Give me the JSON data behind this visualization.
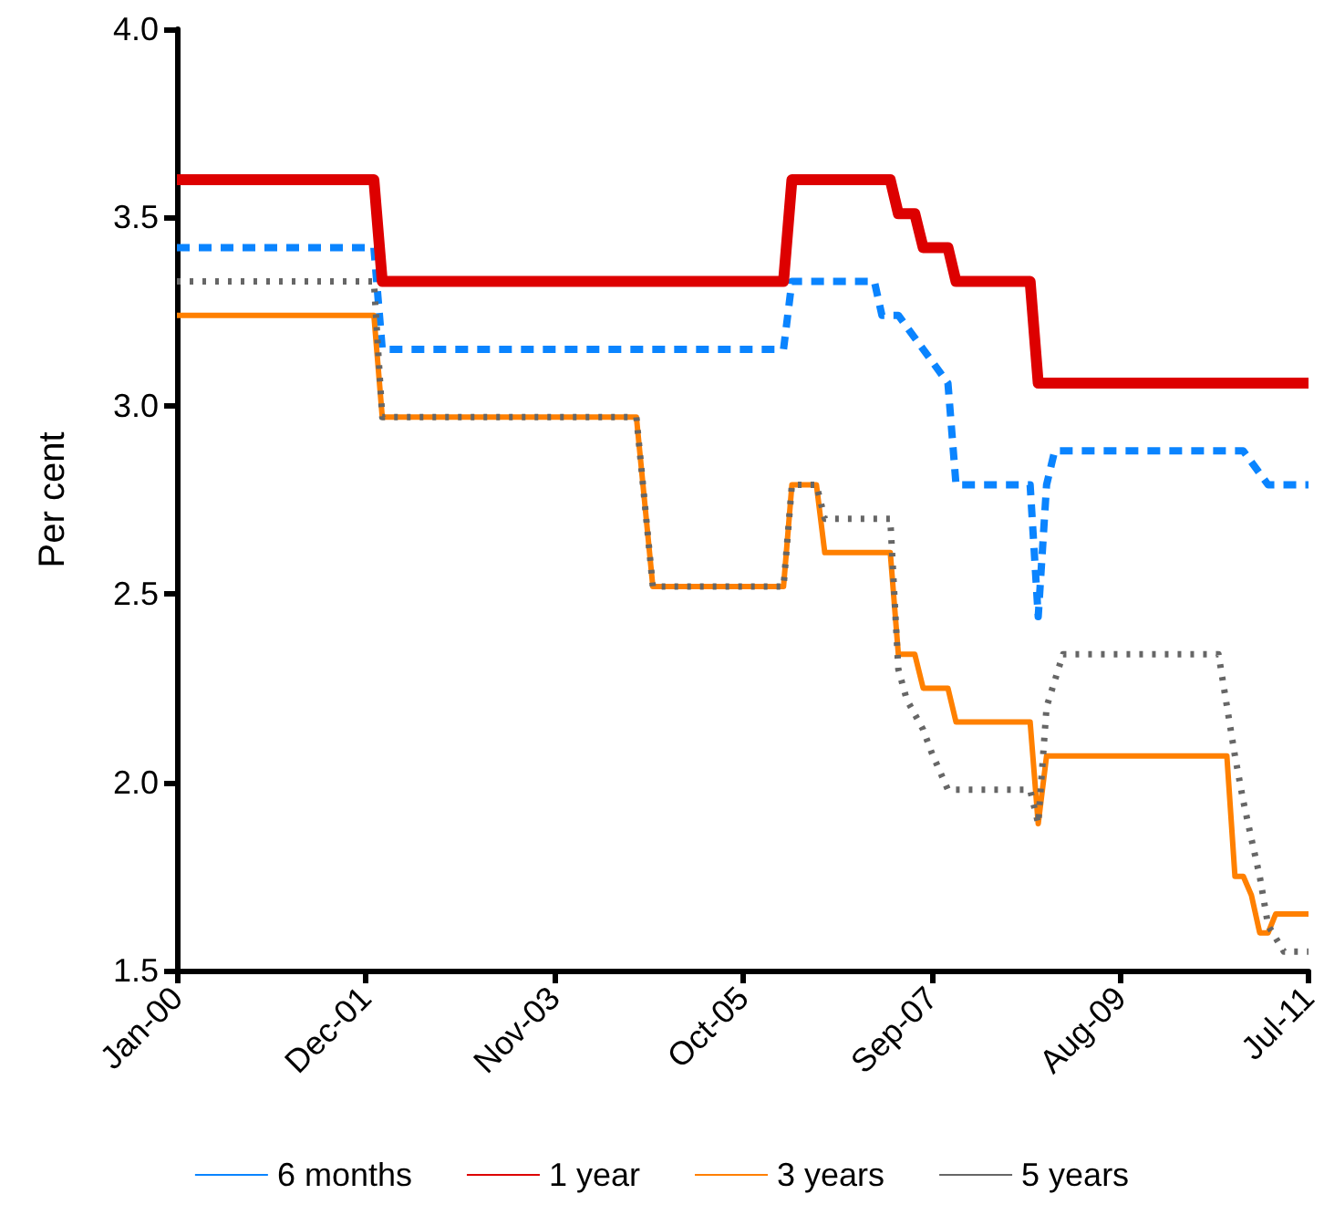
{
  "chart_data": {
    "type": "line",
    "ylabel": "Per cent",
    "xlim": [
      "2000-01",
      "2011-07"
    ],
    "xticks": [
      {
        "value": "2000-01",
        "label": "Jan-00"
      },
      {
        "value": "2001-12",
        "label": "Dec-01"
      },
      {
        "value": "2003-11",
        "label": "Nov-03"
      },
      {
        "value": "2005-10",
        "label": "Oct-05"
      },
      {
        "value": "2007-09",
        "label": "Sep-07"
      },
      {
        "value": "2009-08",
        "label": "Aug-09"
      },
      {
        "value": "2011-07",
        "label": "Jul-11"
      }
    ],
    "ylim": [
      1.5,
      4.0
    ],
    "yticks": [
      {
        "value": 1.5,
        "label": "1.5"
      },
      {
        "value": 2,
        "label": "2.0"
      },
      {
        "value": 2.5,
        "label": "2.5"
      },
      {
        "value": 3,
        "label": "3.0"
      },
      {
        "value": 3.5,
        "label": "3.5"
      },
      {
        "value": 4,
        "label": "4.0"
      }
    ],
    "grid": false,
    "legend": "bottom",
    "marker": "none",
    "series": [
      {
        "name": "6 months",
        "color": "#0a84ff",
        "line_style": "dashed",
        "x": [
          "2000-01",
          "2002-01",
          "2002-02",
          "2006-03",
          "2006-04",
          "2007-02",
          "2007-03",
          "2007-05",
          "2007-11",
          "2007-12",
          "2008-09",
          "2008-10",
          "2008-11",
          "2008-12",
          "2010-11",
          "2011-02",
          "2011-07"
        ],
        "values": [
          3.42,
          3.42,
          3.15,
          3.15,
          3.33,
          3.33,
          3.24,
          3.24,
          3.06,
          2.79,
          2.79,
          2.44,
          2.79,
          2.88,
          2.88,
          2.79,
          2.79
        ]
      },
      {
        "name": "1 year",
        "color": "#dd0000",
        "line_style": "solid",
        "x": [
          "2000-01",
          "2002-01",
          "2002-02",
          "2006-03",
          "2006-04",
          "2007-04",
          "2007-05",
          "2007-07",
          "2007-08",
          "2007-11",
          "2007-12",
          "2008-09",
          "2008-10",
          "2011-07"
        ],
        "values": [
          3.6,
          3.6,
          3.33,
          3.33,
          3.6,
          3.6,
          3.51,
          3.51,
          3.42,
          3.42,
          3.33,
          3.33,
          3.06,
          3.06
        ]
      },
      {
        "name": "3 years",
        "color": "#ff8000",
        "line_style": "solid",
        "x": [
          "2000-01",
          "2002-01",
          "2002-02",
          "2004-09",
          "2004-11",
          "2006-03",
          "2006-04",
          "2006-07",
          "2006-08",
          "2007-04",
          "2007-05",
          "2007-07",
          "2007-08",
          "2007-11",
          "2007-12",
          "2008-09",
          "2008-10",
          "2008-11",
          "2010-09",
          "2010-10",
          "2010-11",
          "2010-12",
          "2011-01",
          "2011-02",
          "2011-03",
          "2011-07"
        ],
        "values": [
          3.24,
          3.24,
          2.97,
          2.97,
          2.52,
          2.52,
          2.79,
          2.79,
          2.61,
          2.61,
          2.34,
          2.34,
          2.25,
          2.25,
          2.16,
          2.16,
          1.89,
          2.07,
          2.07,
          1.75,
          1.75,
          1.7,
          1.6,
          1.6,
          1.65,
          1.65
        ]
      },
      {
        "name": "5 years",
        "color": "#666666",
        "line_style": "dotted",
        "x": [
          "2000-01",
          "2002-01",
          "2002-02",
          "2004-09",
          "2004-11",
          "2006-03",
          "2006-04",
          "2006-07",
          "2006-08",
          "2007-04",
          "2007-05",
          "2007-06",
          "2007-08",
          "2007-09",
          "2007-11",
          "2008-09",
          "2008-10",
          "2008-11",
          "2009-01",
          "2010-08",
          "2010-10",
          "2010-11",
          "2010-12",
          "2011-01",
          "2011-02",
          "2011-04",
          "2011-07"
        ],
        "values": [
          3.33,
          3.33,
          2.97,
          2.97,
          2.52,
          2.52,
          2.79,
          2.79,
          2.7,
          2.7,
          2.3,
          2.22,
          2.14,
          2.08,
          1.98,
          1.98,
          1.89,
          2.2,
          2.34,
          2.34,
          2.07,
          1.95,
          1.85,
          1.75,
          1.62,
          1.55,
          1.55
        ]
      }
    ]
  }
}
